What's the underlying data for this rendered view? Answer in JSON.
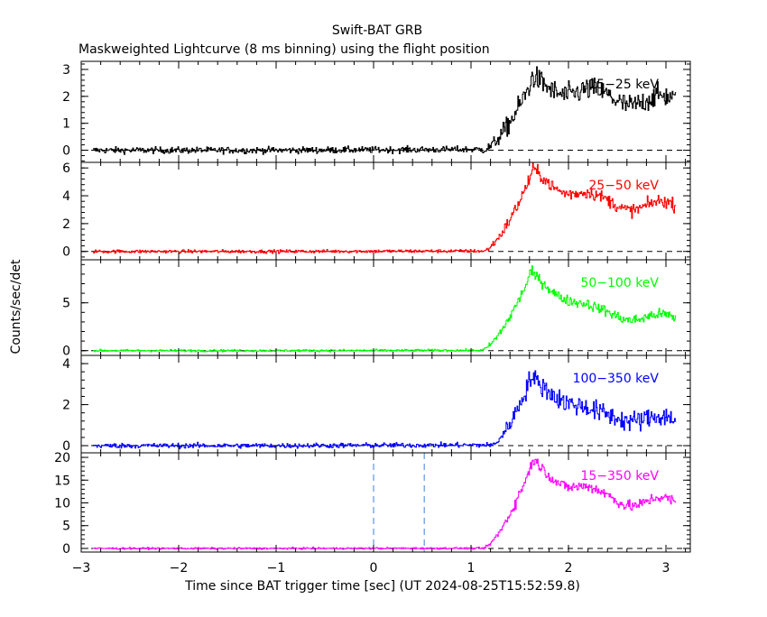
{
  "chart_data": {
    "type": "line",
    "title": "Swift-BAT GRB",
    "subtitle": "Maskweighted Lightcurve (8 ms binning) using the flight position",
    "xlabel": "Time since BAT trigger time [sec] (UT 2024-08-25T15:52:59.8)",
    "ylabel": "Counts/sec/det",
    "xlim": [
      -3.0,
      3.25
    ],
    "x_ticks": [
      -3,
      -2,
      -1,
      0,
      1,
      2,
      3
    ],
    "x_tick_labels": [
      "−3",
      "−2",
      "−1",
      "0",
      "1",
      "2",
      "3"
    ],
    "bin_size_sec": 0.008,
    "grid": false,
    "legend": "per-panel labels, top-right",
    "reference_lines": [
      0.0,
      0.52
    ],
    "panels": [
      {
        "name": "15-25 keV",
        "label": "15−25 keV",
        "color": "#000000",
        "ylim": [
          -0.45,
          3.3
        ],
        "y_ticks": [
          0,
          1,
          2,
          3
        ],
        "profile": {
          "t_rise": 1.12,
          "t_peak": 1.62,
          "peak": 2.55,
          "decay_level": 2.0,
          "decay_end": 1.75,
          "noise_pre": 0.12,
          "noise_post": 0.42
        }
      },
      {
        "name": "25-50 keV",
        "label": "25−50 keV",
        "color": "#ff0000",
        "ylim": [
          -0.6,
          6.4
        ],
        "y_ticks": [
          0,
          2,
          4,
          6
        ],
        "profile": {
          "t_rise": 1.12,
          "t_peak": 1.62,
          "peak": 5.6,
          "decay_level": 3.6,
          "decay_end": 3.1,
          "noise_pre": 0.12,
          "noise_post": 0.45
        }
      },
      {
        "name": "50-100 keV",
        "label": "50−100 keV",
        "color": "#00ff00",
        "ylim": [
          -0.5,
          9.5
        ],
        "y_ticks": [
          0,
          5
        ],
        "profile": {
          "t_rise": 1.1,
          "t_peak": 1.6,
          "peak": 7.8,
          "decay_level": 4.0,
          "decay_end": 3.2,
          "noise_pre": 0.12,
          "noise_post": 0.55
        }
      },
      {
        "name": "100-350 keV",
        "label": "100−350 keV",
        "color": "#0000ff",
        "ylim": [
          -0.35,
          4.4
        ],
        "y_ticks": [
          0,
          2,
          4
        ],
        "profile": {
          "t_rise": 1.2,
          "t_peak": 1.6,
          "peak": 3.2,
          "decay_level": 1.5,
          "decay_end": 1.2,
          "noise_pre": 0.12,
          "noise_post": 0.5
        }
      },
      {
        "name": "15-350 keV",
        "label": "15−350 keV",
        "color": "#ff00ff",
        "ylim": [
          -0.8,
          21
        ],
        "y_ticks": [
          0,
          5,
          10,
          15,
          20
        ],
        "profile": {
          "t_rise": 1.12,
          "t_peak": 1.62,
          "peak": 18.5,
          "decay_level": 11.5,
          "decay_end": 9.5,
          "noise_pre": 0.2,
          "noise_post": 1.2
        }
      }
    ]
  }
}
